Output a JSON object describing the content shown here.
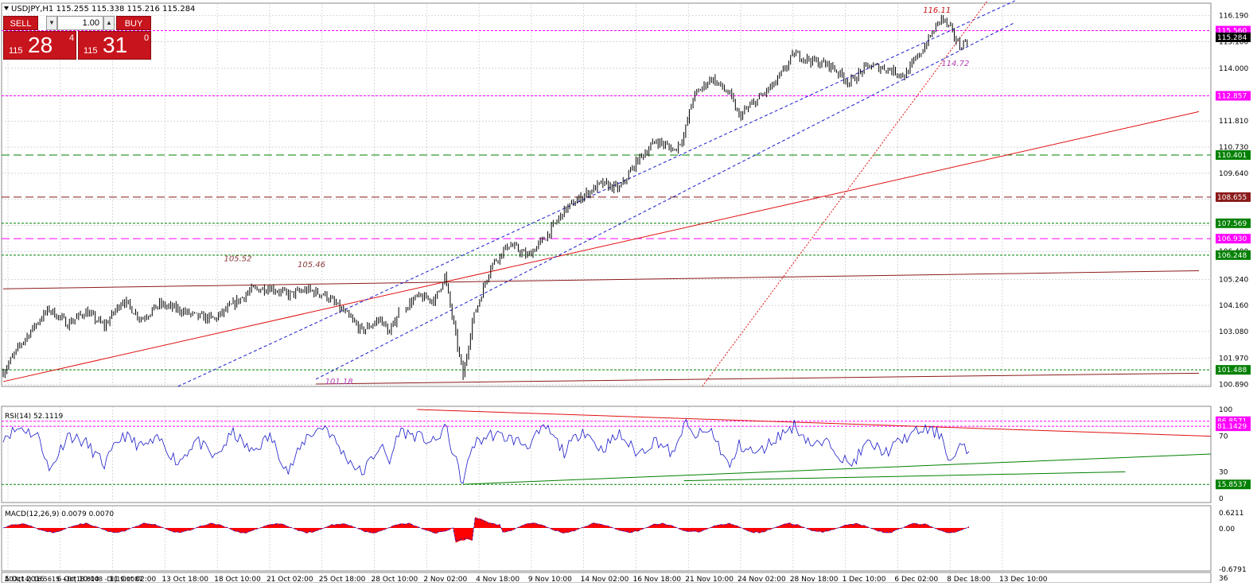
{
  "header": {
    "symbol_line": "USDJPY,H1  115.255 115.338 115.216 115.284"
  },
  "trade_panel": {
    "sell_label": "SELL",
    "buy_label": "BUY",
    "lot": "1.00",
    "spin_down": "▼",
    "spin_up": "▲",
    "sell_price_prefix": "115",
    "sell_price_big": "28",
    "sell_price_sup": "4",
    "buy_price_prefix": "115",
    "buy_price_big": "31",
    "buy_price_sup": "0"
  },
  "colors": {
    "candle": "#000000",
    "rsi": "#1a1ac8",
    "macd": "#ff0000",
    "level_magenta": "#ff00ff",
    "level_green": "#008000",
    "level_maroon": "#8b1a1a",
    "trend_red": "#e01010",
    "channel_blue": "#1a1ad0",
    "grid": "#c8c8c8"
  },
  "chart_data": [
    {
      "type": "candlestick",
      "title": "USDJPY,H1",
      "ohlc_last": {
        "open": 115.255,
        "high": 115.338,
        "low": 115.216,
        "close": 115.284
      },
      "ylim": [
        100.8,
        116.7
      ],
      "y_ticks": [
        "116.190",
        "115.100",
        "114.000",
        "112.857",
        "111.810",
        "110.730",
        "109.640",
        "108.560",
        "107.480",
        "106.400",
        "105.240",
        "104.160",
        "103.080",
        "101.970",
        "100.890"
      ],
      "x_ticks": [
        "5 Oct 2016",
        "6 Oct 10:00",
        "11 Oct 02:00",
        "13 Oct 18:00",
        "18 Oct 10:00",
        "21 Oct 02:00",
        "25 Oct 18:00",
        "28 Oct 10:00",
        "2 Nov 02:00",
        "4 Nov 18:00",
        "9 Nov 10:00",
        "14 Nov 02:00",
        "16 Nov 18:00",
        "21 Nov 10:00",
        "24 Nov 02:00",
        "28 Nov 18:00",
        "1 Dec 10:00",
        "6 Dec 02:00",
        "8 Dec 18:00",
        "13 Dec 10:00"
      ],
      "price_path": [
        [
          0,
          101.4
        ],
        [
          2,
          102.6
        ],
        [
          4,
          103.6
        ],
        [
          5,
          104.0
        ],
        [
          7,
          103.4
        ],
        [
          9,
          103.9
        ],
        [
          11,
          103.3
        ],
        [
          13,
          104.4
        ],
        [
          15,
          103.6
        ],
        [
          17,
          104.2
        ],
        [
          19,
          104.0
        ],
        [
          21,
          103.7
        ],
        [
          23,
          103.6
        ],
        [
          25,
          104.2
        ],
        [
          27,
          104.8
        ],
        [
          29,
          104.9
        ],
        [
          31,
          104.6
        ],
        [
          33,
          104.8
        ],
        [
          35,
          104.6
        ],
        [
          37,
          103.9
        ],
        [
          39,
          103.1
        ],
        [
          41,
          103.6
        ],
        [
          42,
          103.0
        ],
        [
          43,
          103.9
        ],
        [
          45,
          104.5
        ],
        [
          47,
          104.4
        ],
        [
          48,
          105.4
        ],
        [
          50,
          101.2
        ],
        [
          51,
          103.5
        ],
        [
          53,
          105.8
        ],
        [
          55,
          106.7
        ],
        [
          57,
          106.2
        ],
        [
          59,
          107.0
        ],
        [
          61,
          108.1
        ],
        [
          63,
          108.7
        ],
        [
          65,
          109.2
        ],
        [
          67,
          109.0
        ],
        [
          69,
          110.2
        ],
        [
          71,
          111.0
        ],
        [
          73,
          110.6
        ],
        [
          74,
          111.2
        ],
        [
          75,
          112.8
        ],
        [
          77,
          113.6
        ],
        [
          79,
          112.9
        ],
        [
          80,
          112.0
        ],
        [
          82,
          112.7
        ],
        [
          84,
          113.4
        ],
        [
          86,
          114.6
        ],
        [
          88,
          114.3
        ],
        [
          90,
          114.1
        ],
        [
          92,
          113.4
        ],
        [
          94,
          114.1
        ],
        [
          96,
          114.0
        ],
        [
          98,
          113.7
        ],
        [
          100,
          114.8
        ],
        [
          102,
          116.11
        ],
        [
          103,
          115.6
        ],
        [
          104,
          114.9
        ],
        [
          105,
          115.28
        ]
      ],
      "horizontal_levels": [
        {
          "label": "115.560",
          "value": 115.56,
          "color": "#ff00ff",
          "style": "dotted"
        },
        {
          "label": "115.284",
          "value": 115.284,
          "color": "#000000",
          "style": "current"
        },
        {
          "label": "112.857",
          "value": 112.857,
          "color": "#ff00ff",
          "style": "dotted"
        },
        {
          "label": "110.401",
          "value": 110.401,
          "color": "#008000",
          "style": "dashed"
        },
        {
          "label": "108.655",
          "value": 108.655,
          "color": "#8b1a1a",
          "style": "dashed"
        },
        {
          "label": "107.569",
          "value": 107.569,
          "color": "#008000",
          "style": "dotted"
        },
        {
          "label": "106.930",
          "value": 106.93,
          "color": "#ff00ff",
          "style": "dashed"
        },
        {
          "label": "106.248",
          "value": 106.248,
          "color": "#008000",
          "style": "dotted"
        },
        {
          "label": "101.488",
          "value": 101.488,
          "color": "#008000",
          "style": "dotted"
        }
      ],
      "annotations": [
        {
          "text": "116.11",
          "x": 100,
          "y": 116.3,
          "color": "#c81414"
        },
        {
          "text": "114.72",
          "x": 102,
          "y": 114.1,
          "color": "#b040b0"
        },
        {
          "text": "105.52",
          "x": 24,
          "y": 106.0,
          "color": "#8b3a3a"
        },
        {
          "text": "105.46",
          "x": 32,
          "y": 105.75,
          "color": "#8b3a3a"
        },
        {
          "text": "101.18",
          "x": 35,
          "y": 100.9,
          "color": "#b040b0"
        }
      ],
      "trendlines": [
        {
          "from": [
            0,
            101.0
          ],
          "to": [
            130,
            112.2
          ],
          "color": "#e01010",
          "style": "solid"
        },
        {
          "from": [
            0,
            104.85
          ],
          "to": [
            130,
            105.6
          ],
          "color": "#8b1a1a",
          "style": "solid"
        },
        {
          "from": [
            34,
            100.9
          ],
          "to": [
            130,
            101.35
          ],
          "color": "#8b1a1a",
          "style": "solid"
        },
        {
          "from": [
            19,
            100.8
          ],
          "to": [
            110,
            116.8
          ],
          "color": "#1a1ad0",
          "style": "dashed"
        },
        {
          "from": [
            34,
            101.1
          ],
          "to": [
            110,
            115.9
          ],
          "color": "#1a1ad0",
          "style": "dashed"
        },
        {
          "from": [
            76,
            100.8
          ],
          "to": [
            107,
            116.8
          ],
          "color": "#e01010",
          "style": "dotted"
        }
      ]
    },
    {
      "type": "line",
      "title": "RSI(14) 52.1119",
      "ylim": [
        0,
        100
      ],
      "y_ticks": [
        "100",
        "70",
        "30",
        "0"
      ],
      "levels": [
        {
          "label": "86.8571",
          "value": 86.8571,
          "color": "#ff00ff"
        },
        {
          "label": "81.1429",
          "value": 81.1429,
          "color": "#ff00ff"
        },
        {
          "label": "15.8537",
          "value": 15.8537,
          "color": "#008000"
        }
      ],
      "series": [
        {
          "values_path": [
            [
              0,
              70
            ],
            [
              2,
              80
            ],
            [
              4,
              68
            ],
            [
              5,
              30
            ],
            [
              7,
              72
            ],
            [
              9,
              62
            ],
            [
              11,
              38
            ],
            [
              13,
              72
            ],
            [
              15,
              58
            ],
            [
              17,
              66
            ],
            [
              19,
              40
            ],
            [
              21,
              66
            ],
            [
              23,
              45
            ],
            [
              25,
              74
            ],
            [
              27,
              52
            ],
            [
              29,
              70
            ],
            [
              31,
              30
            ],
            [
              33,
              70
            ],
            [
              35,
              82
            ],
            [
              37,
              50
            ],
            [
              39,
              28
            ],
            [
              41,
              60
            ],
            [
              42,
              40
            ],
            [
              43,
              76
            ],
            [
              45,
              70
            ],
            [
              47,
              62
            ],
            [
              48,
              82
            ],
            [
              50,
              16
            ],
            [
              51,
              60
            ],
            [
              53,
              72
            ],
            [
              55,
              68
            ],
            [
              57,
              60
            ],
            [
              59,
              80
            ],
            [
              61,
              52
            ],
            [
              63,
              78
            ],
            [
              65,
              55
            ],
            [
              67,
              72
            ],
            [
              69,
              50
            ],
            [
              71,
              66
            ],
            [
              73,
              48
            ],
            [
              74,
              86
            ],
            [
              75,
              70
            ],
            [
              77,
              76
            ],
            [
              79,
              34
            ],
            [
              80,
              60
            ],
            [
              82,
              50
            ],
            [
              84,
              68
            ],
            [
              86,
              82
            ],
            [
              88,
              60
            ],
            [
              90,
              62
            ],
            [
              92,
              36
            ],
            [
              94,
              62
            ],
            [
              96,
              52
            ],
            [
              98,
              68
            ],
            [
              100,
              78
            ],
            [
              102,
              72
            ],
            [
              103,
              40
            ],
            [
              104,
              58
            ],
            [
              105,
              52
            ]
          ]
        }
      ]
    },
    {
      "type": "area",
      "title": "MACD(12,26,9) 0.0079 0.0070",
      "ylim": [
        -0.6791,
        0.6211
      ],
      "y_ticks": [
        "0.6211",
        "0.00",
        "-0.6791"
      ]
    },
    {
      "type": "line",
      "title": "ADX(14) 16.5615 +DI(18.8148 -DI(19.9087",
      "y_ticks": [
        "36"
      ]
    }
  ]
}
